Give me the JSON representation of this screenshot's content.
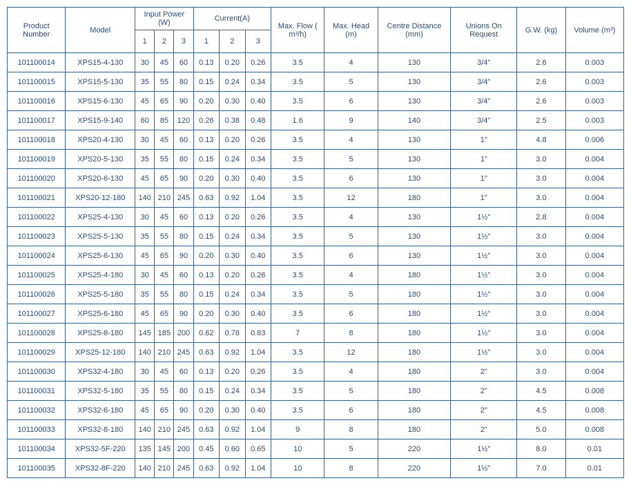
{
  "colors": {
    "border": "#3a5f8f",
    "text": "#2a4a75",
    "background": "#ffffff"
  },
  "headers": {
    "product_number": "Product Number",
    "model": "Model",
    "input_power": "Input Power (W)",
    "current": "Current(A)",
    "max_flow": "Max. Flow ( m³/h)",
    "max_head": "Max. Head (m)",
    "centre_distance": "Centre Distance (mm)",
    "unions": "Unions On Request",
    "gw": "G.W. (kg)",
    "volume": "Volume (m³)",
    "sub1": "1",
    "sub2": "2",
    "sub3": "3"
  },
  "rows": [
    {
      "pn": "101100014",
      "model": "XPS15-4-130",
      "p1": "30",
      "p2": "45",
      "p3": "60",
      "c1": "0.13",
      "c2": "0.20",
      "c3": "0.26",
      "flow": "3.5",
      "head": "4",
      "cd": "130",
      "union": "3/4\"",
      "gw": "2.6",
      "vol": "0.003"
    },
    {
      "pn": "101100015",
      "model": "XPS15-5-130",
      "p1": "35",
      "p2": "55",
      "p3": "80",
      "c1": "0.15",
      "c2": "0.24",
      "c3": "0.34",
      "flow": "3.5",
      "head": "5",
      "cd": "130",
      "union": "3/4\"",
      "gw": "2.6",
      "vol": "0.003"
    },
    {
      "pn": "101100016",
      "model": "XPS15-6-130",
      "p1": "45",
      "p2": "65",
      "p3": "90",
      "c1": "0.20",
      "c2": "0.30",
      "c3": "0.40",
      "flow": "3.5",
      "head": "6",
      "cd": "130",
      "union": "3/4\"",
      "gw": "2.6",
      "vol": "0.003"
    },
    {
      "pn": "101100017",
      "model": "XPS15-9-140",
      "p1": "60",
      "p2": "85",
      "p3": "120",
      "c1": "0.26",
      "c2": "0.38",
      "c3": "0.48",
      "flow": "1.6",
      "head": "9",
      "cd": "140",
      "union": "3/4\"",
      "gw": "2.5",
      "vol": "0.003"
    },
    {
      "pn": "101100018",
      "model": "XPS20-4-130",
      "p1": "30",
      "p2": "45",
      "p3": "60",
      "c1": "0.13",
      "c2": "0.20",
      "c3": "0.26",
      "flow": "3.5",
      "head": "4",
      "cd": "130",
      "union": "1\"",
      "gw": "4.8",
      "vol": "0.006"
    },
    {
      "pn": "101100019",
      "model": "XPS20-5-130",
      "p1": "35",
      "p2": "55",
      "p3": "80",
      "c1": "0.15",
      "c2": "0.24",
      "c3": "0.34",
      "flow": "3.5",
      "head": "5",
      "cd": "130",
      "union": "1\"",
      "gw": "3.0",
      "vol": "0.004"
    },
    {
      "pn": "101100020",
      "model": "XPS20-6-130",
      "p1": "45",
      "p2": "65",
      "p3": "90",
      "c1": "0.20",
      "c2": "0.30",
      "c3": "0.40",
      "flow": "3.5",
      "head": "6",
      "cd": "130",
      "union": "1\"",
      "gw": "3.0",
      "vol": "0.004"
    },
    {
      "pn": "101100021",
      "model": "XPS20-12-180",
      "p1": "140",
      "p2": "210",
      "p3": "245",
      "c1": "0.63",
      "c2": "0.92",
      "c3": "1.04",
      "flow": "3.5",
      "head": "12",
      "cd": "180",
      "union": "1\"",
      "gw": "3.0",
      "vol": "0.004"
    },
    {
      "pn": "101100022",
      "model": "XPS25-4-130",
      "p1": "30",
      "p2": "45",
      "p3": "60",
      "c1": "0.13",
      "c2": "0.20",
      "c3": "0.26",
      "flow": "3.5",
      "head": "4",
      "cd": "130",
      "union": "1½\"",
      "gw": "2.8",
      "vol": "0.004"
    },
    {
      "pn": "101100023",
      "model": "XPS25-5-130",
      "p1": "35",
      "p2": "55",
      "p3": "80",
      "c1": "0.15",
      "c2": "0.24",
      "c3": "0.34",
      "flow": "3.5",
      "head": "5",
      "cd": "130",
      "union": "1½\"",
      "gw": "3.0",
      "vol": "0.004"
    },
    {
      "pn": "101100024",
      "model": "XPS25-6-130",
      "p1": "45",
      "p2": "65",
      "p3": "90",
      "c1": "0.20",
      "c2": "0.30",
      "c3": "0.40",
      "flow": "3.5",
      "head": "6",
      "cd": "130",
      "union": "1½\"",
      "gw": "3.0",
      "vol": "0.004"
    },
    {
      "pn": "101100025",
      "model": "XPS25-4-180",
      "p1": "30",
      "p2": "45",
      "p3": "60",
      "c1": "0.13",
      "c2": "0.20",
      "c3": "0.26",
      "flow": "3.5",
      "head": "4",
      "cd": "180",
      "union": "1½\"",
      "gw": "3.0",
      "vol": "0.004"
    },
    {
      "pn": "101100026",
      "model": "XPS25-5-180",
      "p1": "35",
      "p2": "55",
      "p3": "80",
      "c1": "0.15",
      "c2": "0.24",
      "c3": "0.34",
      "flow": "3.5",
      "head": "5",
      "cd": "180",
      "union": "1½\"",
      "gw": "3.0",
      "vol": "0.004"
    },
    {
      "pn": "101100027",
      "model": "XPS25-6-180",
      "p1": "45",
      "p2": "65",
      "p3": "90",
      "c1": "0.20",
      "c2": "0.30",
      "c3": "0.40",
      "flow": "3.5",
      "head": "6",
      "cd": "180",
      "union": "1½\"",
      "gw": "3.0",
      "vol": "0.004"
    },
    {
      "pn": "101100028",
      "model": "XPS25-8-180",
      "p1": "145",
      "p2": "185",
      "p3": "200",
      "c1": "0.62",
      "c2": "0.78",
      "c3": "0.83",
      "flow": "7",
      "head": "8",
      "cd": "180",
      "union": "1½\"",
      "gw": "3.0",
      "vol": "0.004"
    },
    {
      "pn": "101100029",
      "model": "XPS25-12-180",
      "p1": "140",
      "p2": "210",
      "p3": "245",
      "c1": "0.63",
      "c2": "0.92",
      "c3": "1.04",
      "flow": "3.5",
      "head": "12",
      "cd": "180",
      "union": "1½\"",
      "gw": "3.0",
      "vol": "0.004"
    },
    {
      "pn": "101100030",
      "model": "XPS32-4-180",
      "p1": "30",
      "p2": "45",
      "p3": "60",
      "c1": "0.13",
      "c2": "0.20",
      "c3": "0.26",
      "flow": "3.5",
      "head": "4",
      "cd": "180",
      "union": "2\"",
      "gw": "3.0",
      "vol": "0.004"
    },
    {
      "pn": "101100031",
      "model": "XPS32-5-180",
      "p1": "35",
      "p2": "55",
      "p3": "80",
      "c1": "0.15",
      "c2": "0.24",
      "c3": "0.34",
      "flow": "3.5",
      "head": "5",
      "cd": "180",
      "union": "2\"",
      "gw": "4.5",
      "vol": "0.008"
    },
    {
      "pn": "101100032",
      "model": "XPS32-6-180",
      "p1": "45",
      "p2": "65",
      "p3": "90",
      "c1": "0.20",
      "c2": "0.30",
      "c3": "0.40",
      "flow": "3.5",
      "head": "6",
      "cd": "180",
      "union": "2\"",
      "gw": "4.5",
      "vol": "0.008"
    },
    {
      "pn": "101100033",
      "model": "XPS32-8-180",
      "p1": "140",
      "p2": "210",
      "p3": "245",
      "c1": "0.63",
      "c2": "0.92",
      "c3": "1.04",
      "flow": "9",
      "head": "8",
      "cd": "180",
      "union": "2\"",
      "gw": "5.0",
      "vol": "0.008"
    },
    {
      "pn": "101100034",
      "model": "XPS32-5F-220",
      "p1": "135",
      "p2": "145",
      "p3": "200",
      "c1": "0.45",
      "c2": "0.60",
      "c3": "0.65",
      "flow": "10",
      "head": "5",
      "cd": "220",
      "union": "1½\"",
      "gw": "8.0",
      "vol": "0.01"
    },
    {
      "pn": "101100035",
      "model": "XPS32-8F-220",
      "p1": "140",
      "p2": "210",
      "p3": "245",
      "c1": "0.63",
      "c2": "0.92",
      "c3": "1.04",
      "flow": "10",
      "head": "8",
      "cd": "220",
      "union": "1½\"",
      "gw": "7.0",
      "vol": "0.01"
    }
  ]
}
